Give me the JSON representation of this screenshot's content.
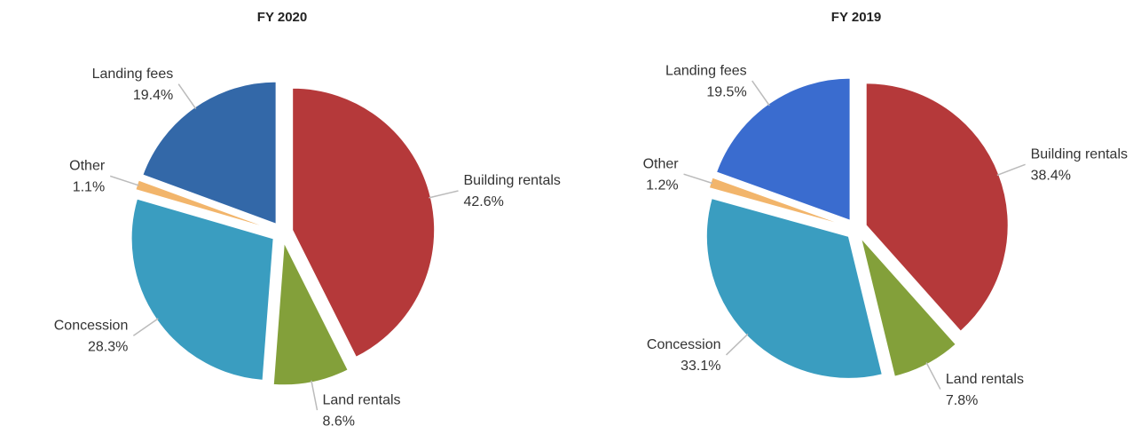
{
  "chart_data": [
    {
      "type": "pie",
      "title": "FY 2020",
      "categories": [
        "Building rentals",
        "Land rentals",
        "Concession",
        "Other",
        "Landing fees"
      ],
      "values": [
        42.6,
        8.6,
        28.3,
        1.1,
        19.4
      ],
      "value_labels": [
        "42.6%",
        "8.6%",
        "28.3%",
        "1.1%",
        "19.4%"
      ],
      "colors": [
        "#b5393a",
        "#83a03a",
        "#3a9dc0",
        "#f2b56b",
        "#3368a8"
      ]
    },
    {
      "type": "pie",
      "title": "FY 2019",
      "categories": [
        "Building rentals",
        "Land rentals",
        "Concession",
        "Other",
        "Landing fees"
      ],
      "values": [
        38.4,
        7.8,
        33.1,
        1.2,
        19.5
      ],
      "value_labels": [
        "38.4%",
        "7.8%",
        "33.1%",
        "1.2%",
        "19.5%"
      ],
      "colors": [
        "#b5393a",
        "#83a03a",
        "#3a9dc0",
        "#f2b56b",
        "#3a6ccf"
      ]
    }
  ]
}
